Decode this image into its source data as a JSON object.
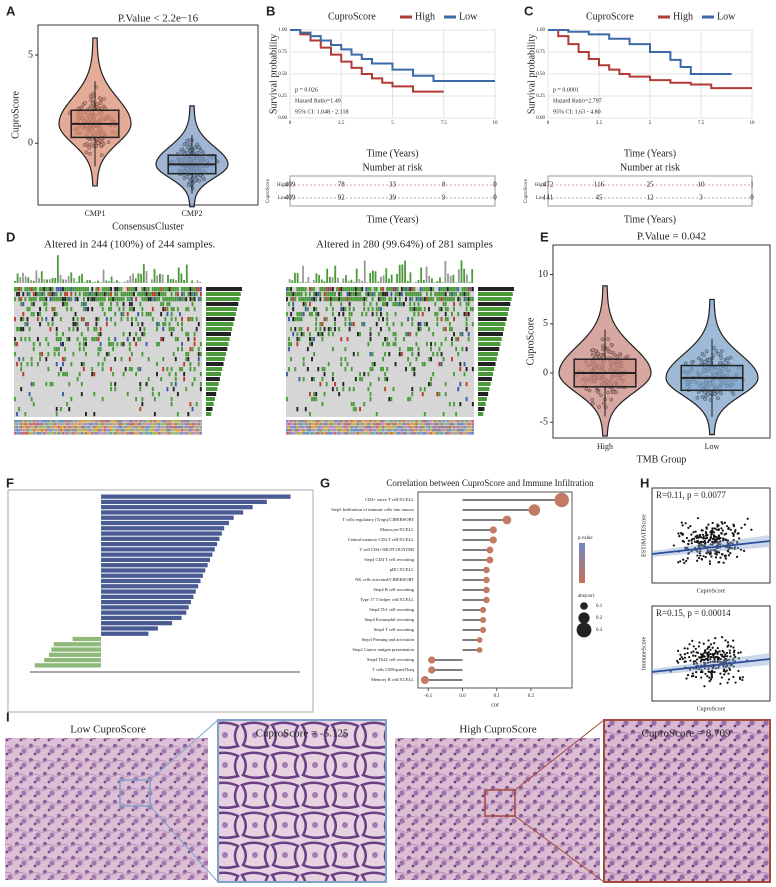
{
  "panels": {
    "A": {
      "label": "A",
      "title": "P.Value < 2.2e−16",
      "ylabel": "CuproScore",
      "xlabel": "ConsensusCluster",
      "categories": [
        "CMP1",
        "CMP2"
      ],
      "colors": [
        "#d98f76",
        "#7f9cc4"
      ],
      "ylim": [
        -3.5,
        6.7
      ],
      "yticks": [
        5,
        0
      ]
    },
    "B": {
      "label": "B",
      "legend_title": "CuproScore",
      "ylabel": "Survival probability",
      "xlabel": "Time (Years)",
      "xlim": [
        0,
        10
      ],
      "ylim": [
        0,
        1
      ],
      "xticks": [
        0,
        2.5,
        5,
        7.5,
        10
      ],
      "yticks": [
        {
          "value": 0,
          "label": "0.00"
        },
        {
          "value": 0.25,
          "label": "0.25"
        },
        {
          "value": 0.5,
          "label": "0.50"
        },
        {
          "value": 0.75,
          "label": "0.75"
        },
        {
          "value": 1,
          "label": "1.00"
        }
      ],
      "series": [
        {
          "name": "High",
          "color": "#b33a35",
          "x": [
            0,
            0.5,
            1,
            1.5,
            2,
            2.5,
            3,
            3.5,
            4,
            4.5,
            5,
            6,
            7.5
          ],
          "y": [
            1,
            0.95,
            0.88,
            0.8,
            0.72,
            0.64,
            0.57,
            0.5,
            0.45,
            0.4,
            0.36,
            0.3,
            0.3
          ]
        },
        {
          "name": "Low",
          "color": "#3c6aa8",
          "x": [
            0,
            0.5,
            1,
            1.5,
            2,
            2.5,
            3,
            3.5,
            4,
            5,
            6,
            7,
            10
          ],
          "y": [
            1,
            0.97,
            0.93,
            0.88,
            0.83,
            0.78,
            0.72,
            0.67,
            0.62,
            0.55,
            0.48,
            0.42,
            0.42
          ]
        }
      ],
      "stats": [
        "p = 0.026",
        "Hazard Ratio=1.49",
        "95% CI: 1.048 - 2.118"
      ],
      "risk_title": "Number at risk",
      "risk_ylabel": "CuproScore",
      "risk_xlabel": "Time (Years)",
      "risk_rows": [
        {
          "name": "High",
          "counts": [
            409,
            78,
            33,
            8,
            0
          ]
        },
        {
          "name": "Low",
          "counts": [
            409,
            92,
            39,
            9,
            0
          ]
        }
      ]
    },
    "C": {
      "label": "C",
      "legend_title": "CuproScore",
      "ylabel": "Survival probability",
      "xlabel": "Time (Years)",
      "xlim": [
        0,
        10
      ],
      "ylim": [
        0,
        1
      ],
      "xticks": [
        0,
        2.5,
        5,
        7.5,
        10
      ],
      "yticks": [
        {
          "value": 0,
          "label": "0.00"
        },
        {
          "value": 0.25,
          "label": "0.25"
        },
        {
          "value": 0.5,
          "label": "0.50"
        },
        {
          "value": 0.75,
          "label": "0.75"
        },
        {
          "value": 1,
          "label": "1.00"
        }
      ],
      "series": [
        {
          "name": "High",
          "color": "#b33a35",
          "x": [
            0,
            0.5,
            1,
            1.5,
            2,
            2.5,
            3,
            3.5,
            4,
            5,
            6,
            7,
            8,
            10
          ],
          "y": [
            1,
            0.93,
            0.84,
            0.75,
            0.67,
            0.6,
            0.55,
            0.5,
            0.47,
            0.43,
            0.4,
            0.38,
            0.34,
            0.34
          ]
        },
        {
          "name": "Low",
          "color": "#3c6aa8",
          "x": [
            0,
            1,
            2,
            3,
            4,
            5,
            6,
            6.5,
            7,
            9
          ],
          "y": [
            1,
            0.98,
            0.95,
            0.9,
            0.84,
            0.75,
            0.66,
            0.58,
            0.5,
            0.5
          ]
        }
      ],
      "stats": [
        "p = 0.0001",
        "Hazard Ratio=2.797",
        "95% CI: 1.63 - 4.80"
      ],
      "risk_title": "Number at risk",
      "risk_ylabel": "CuproScore",
      "risk_xlabel": "Time (Years)",
      "risk_rows": [
        {
          "name": "High",
          "counts": [
            472,
            116,
            25,
            10,
            1
          ]
        },
        {
          "name": "Low",
          "counts": [
            141,
            45,
            12,
            3,
            0
          ]
        }
      ]
    },
    "D": {
      "label": "D",
      "titles": [
        "Altered in 244 (100%) of 244 samples.",
        "Altered in 280 (99.64%) of 281 samples"
      ]
    },
    "E": {
      "label": "E",
      "title": "P.Value = 0.042",
      "ylabel": "CuproScore",
      "xlabel": "TMB Group",
      "categories": [
        "High",
        "Low"
      ],
      "colors": [
        "#c98a82",
        "#7fa3c8"
      ],
      "ylim": [
        -6.6,
        13
      ],
      "yticks": [
        10,
        5,
        0,
        -5
      ]
    },
    "F": {
      "label": "F",
      "xlim": [
        -1.5,
        4.2
      ],
      "colors": [
        "#4a5a93",
        "#8fb97a"
      ],
      "values": [
        4.0,
        3.5,
        3.2,
        3.0,
        2.8,
        2.7,
        2.6,
        2.55,
        2.5,
        2.45,
        2.4,
        2.35,
        2.3,
        2.25,
        2.2,
        2.15,
        2.1,
        2.05,
        2.0,
        1.95,
        1.9,
        1.85,
        1.8,
        1.7,
        1.5,
        1.2,
        1.0,
        -0.6,
        -1.0,
        -1.05,
        -1.1,
        -1.2,
        -1.4
      ]
    },
    "G": {
      "label": "G",
      "title": "Correlation between CuproScore and Immune Infiltration",
      "xlabel": "cor",
      "xlim": [
        -0.13,
        0.32
      ],
      "xticks": [
        {
          "value": -0.1,
          "label": "-0.1"
        },
        {
          "value": 0,
          "label": "0.0"
        },
        {
          "value": 0.1,
          "label": "0.1"
        },
        {
          "value": 0.2,
          "label": "0.2"
        }
      ],
      "color": "#c27a62",
      "categories": [
        "CD4+ naive T cell/XCELL",
        "Step5 Infiltration of immune cells into tumors",
        "T cells regulatory (Tregs)/CIBERSORT",
        "Monocyte/XCELL",
        "Central memory CD4 T cell/XCELL",
        "T cell CD4+/MCPCOUNTER",
        "Step4 CD4 T cell recruiting",
        "pDC/XCELL",
        "NK cells activated/CIBERSORT",
        "Step4 B cell recruiting",
        "Type 17 T helper cell/XCELL",
        "Step4 Th1 cell recruiting",
        "Step4 Eosinophil recruiting",
        "Step4 T cell recruiting",
        "Step3 Priming and activation",
        "Step2 Cancer antigen presentation",
        "Step4 Th22 cell recruiting",
        "T cells CD8/quanTIseq",
        "Memory B cell/XCELL"
      ],
      "values": [
        0.29,
        0.21,
        0.13,
        0.09,
        0.09,
        0.08,
        0.08,
        0.07,
        0.07,
        0.07,
        0.07,
        0.06,
        0.06,
        0.06,
        0.05,
        0.05,
        -0.09,
        -0.09,
        -0.11
      ],
      "legend_color_title": "p.value",
      "legend_size_title": "abs(cor)",
      "legend_sizes": [
        0.1,
        0.2,
        0.3
      ]
    },
    "H": {
      "label": "H",
      "plots": [
        {
          "stat": "R=0.11, p = 0.0077",
          "ylabel": "ESTIMATEScore",
          "xlabel": "CuproScore"
        },
        {
          "stat": "R=0.15, p = 0.00014",
          "ylabel": "ImmuneScore",
          "xlabel": "CuproScore"
        }
      ]
    },
    "I": {
      "label": "I",
      "captions": [
        "Low CuproScore",
        "CuproScore = -5.125",
        "High CuproScore",
        "CuproScore = 8.709"
      ]
    }
  }
}
